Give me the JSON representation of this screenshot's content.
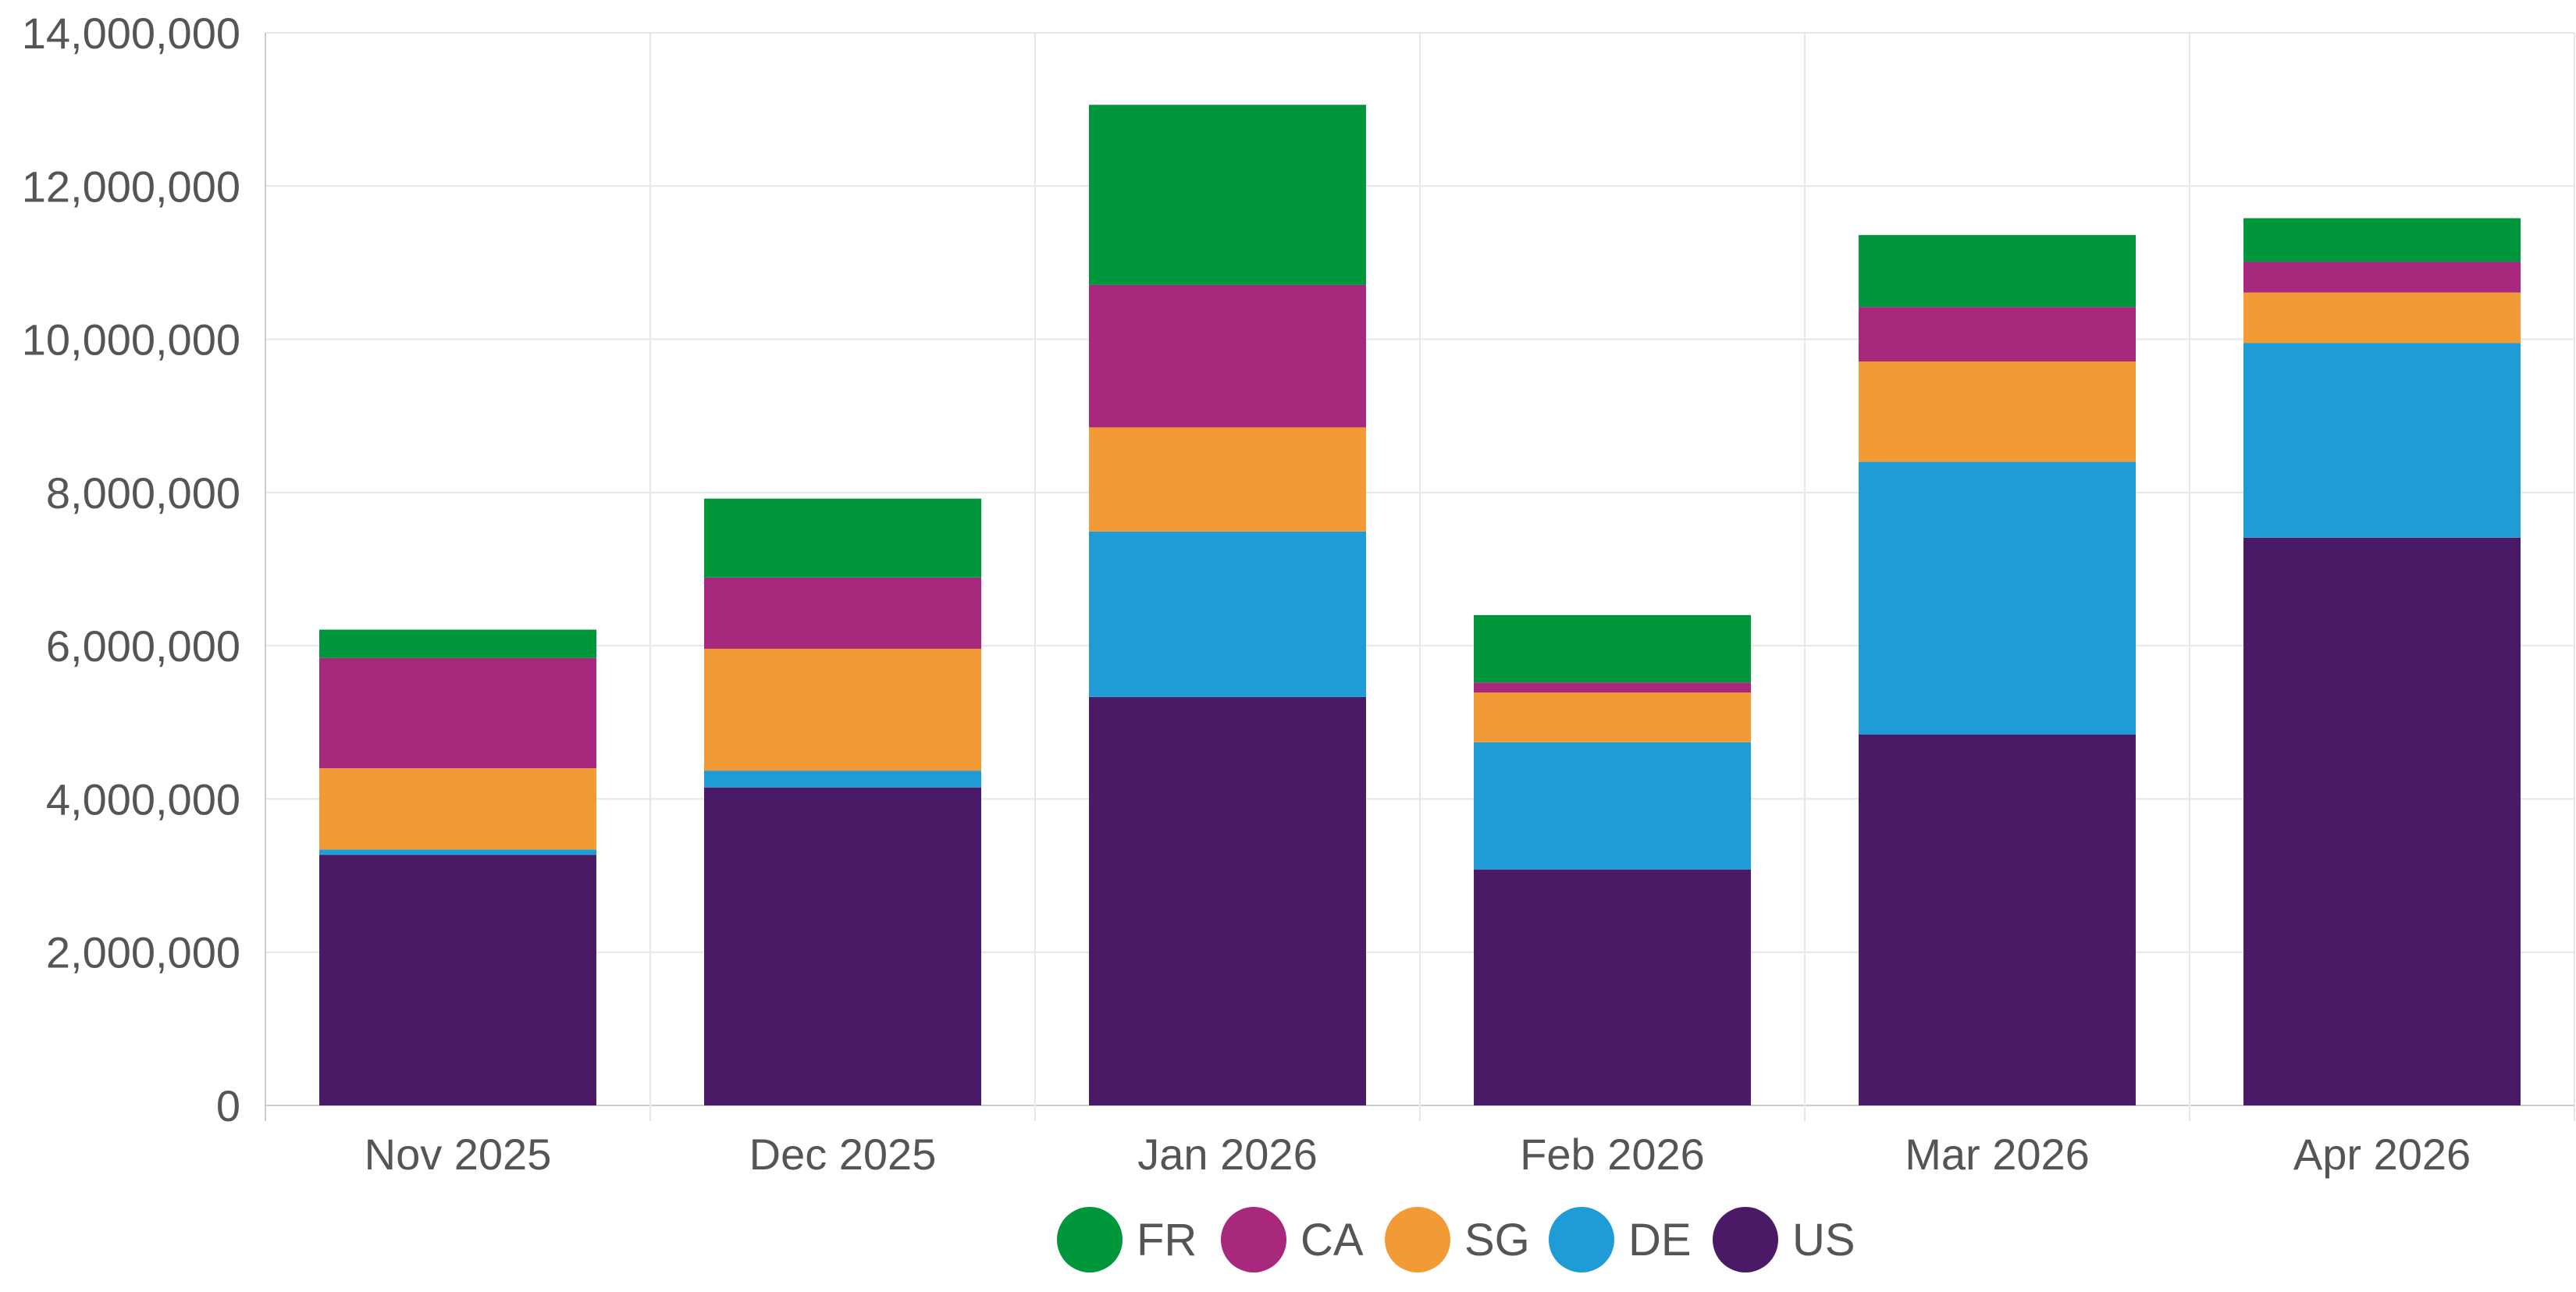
{
  "chart_data": {
    "type": "bar",
    "stacked": true,
    "categories": [
      "Nov 2025",
      "Dec 2025",
      "Jan 2026",
      "Feb 2026",
      "Mar 2026",
      "Apr 2026"
    ],
    "series": [
      {
        "name": "US",
        "color": "#4a1a67",
        "values": [
          3270000,
          4150000,
          5330000,
          3080000,
          4840000,
          7410000
        ]
      },
      {
        "name": "DE",
        "color": "#1f9bd5",
        "values": [
          70000,
          220000,
          2160000,
          1660000,
          3560000,
          2540000
        ]
      },
      {
        "name": "SG",
        "color": "#f29b36",
        "values": [
          1060000,
          1590000,
          1360000,
          650000,
          1310000,
          660000
        ]
      },
      {
        "name": "CA",
        "color": "#a8287e",
        "values": [
          1440000,
          930000,
          1860000,
          130000,
          710000,
          400000
        ]
      },
      {
        "name": "FR",
        "color": "#00963c",
        "values": [
          370000,
          1030000,
          2350000,
          880000,
          940000,
          570000
        ]
      }
    ],
    "ylim": [
      0,
      14000000
    ],
    "yticks": [
      0,
      2000000,
      4000000,
      6000000,
      8000000,
      10000000,
      12000000,
      14000000
    ],
    "ytick_labels": [
      "0",
      "2,000,000",
      "4,000,000",
      "6,000,000",
      "8,000,000",
      "10,000,000",
      "12,000,000",
      "14,000,000"
    ],
    "legend_order": [
      "FR",
      "CA",
      "SG",
      "DE",
      "US"
    ],
    "legend_position": "bottom-center",
    "grid": true,
    "title": "",
    "xlabel": "",
    "ylabel": ""
  }
}
